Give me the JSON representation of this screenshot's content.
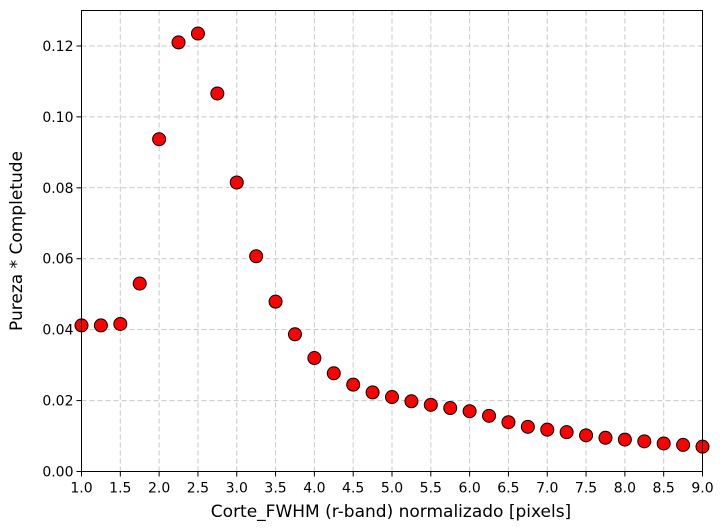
{
  "chart_data": {
    "type": "scatter",
    "xlabel": "Corte_FWHM (r-band) normalizado [pixels]",
    "ylabel": "Pureza * Completude",
    "xlim": [
      1.0,
      9.0
    ],
    "ylim": [
      0.0,
      0.13
    ],
    "grid": true,
    "marker_color": "#ff0000",
    "marker_edge_color": "#000000",
    "x_ticks": [
      "1.0",
      "1.5",
      "2.0",
      "2.5",
      "3.0",
      "3.5",
      "4.0",
      "4.5",
      "5.0",
      "5.5",
      "6.0",
      "6.5",
      "7.0",
      "7.5",
      "8.0",
      "8.5",
      "9.0"
    ],
    "y_ticks": [
      "0.00",
      "0.02",
      "0.04",
      "0.06",
      "0.08",
      "0.10",
      "0.12"
    ],
    "x": [
      1.0,
      1.25,
      1.5,
      1.75,
      2.0,
      2.25,
      2.5,
      2.75,
      3.0,
      3.25,
      3.5,
      3.75,
      4.0,
      4.25,
      4.5,
      4.75,
      5.0,
      5.25,
      5.5,
      5.75,
      6.0,
      6.25,
      6.5,
      6.75,
      7.0,
      7.25,
      7.5,
      7.75,
      8.0,
      8.25,
      8.5,
      8.75,
      9.0
    ],
    "y": [
      0.0412,
      0.0412,
      0.0416,
      0.053,
      0.0937,
      0.121,
      0.1235,
      0.1066,
      0.0815,
      0.0607,
      0.0479,
      0.0387,
      0.032,
      0.0277,
      0.0245,
      0.0223,
      0.021,
      0.0198,
      0.0188,
      0.0179,
      0.017,
      0.0157,
      0.0139,
      0.0126,
      0.0118,
      0.0111,
      0.0102,
      0.0095,
      0.009,
      0.0085,
      0.0079,
      0.0075,
      0.007
    ]
  }
}
